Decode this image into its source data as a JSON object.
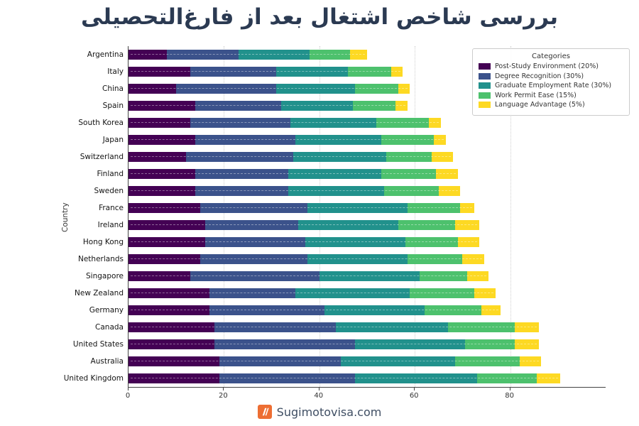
{
  "title": "بررسی شاخص اشتغال بعد از فارغ‌التحصیلی",
  "footer": {
    "text": "Sugimotovisa.com",
    "logo_color": "#ed6e33"
  },
  "axis_color": "#444444",
  "grid_color": "#cfcfcf",
  "chart_data": {
    "type": "bar",
    "orientation": "horizontal",
    "stacked": true,
    "title": "بررسی شاخص اشتغال بعد از فارغ‌التحصیلی",
    "xlabel": "",
    "ylabel": "Country",
    "xlim": [
      0,
      100
    ],
    "xticks": [
      0,
      20,
      40,
      60,
      80
    ],
    "grid": "vertical-dotted",
    "legend": {
      "title": "Categories",
      "position": "upper-right"
    },
    "categories": [
      "Argentina",
      "Italy",
      "China",
      "Spain",
      "South Korea",
      "Japan",
      "Switzerland",
      "Finland",
      "Sweden",
      "France",
      "Ireland",
      "Hong Kong",
      "Netherlands",
      "Singapore",
      "New Zealand",
      "Germany",
      "Canada",
      "United States",
      "Australia",
      "United Kingdom"
    ],
    "series": [
      {
        "name": "Post-Study Environment (20%)",
        "color": "#440154",
        "values": [
          8,
          13,
          10,
          14,
          13,
          14,
          12,
          14,
          14,
          15,
          16,
          16,
          15,
          13,
          17,
          17,
          18,
          18,
          19,
          19
        ]
      },
      {
        "name": "Degree Recognition (30%)",
        "color": "#3b528b",
        "values": [
          15,
          18,
          21,
          18,
          21,
          21,
          22.5,
          19.5,
          19.5,
          22.5,
          19.5,
          21,
          22.5,
          27,
          18,
          24,
          25.5,
          29.5,
          25.5,
          28.5
        ]
      },
      {
        "name": "Graduate Employment Rate (30%)",
        "color": "#21918c",
        "values": [
          15,
          15,
          16.5,
          15,
          18,
          18,
          19.5,
          19.5,
          20,
          21,
          21,
          21,
          21,
          21,
          24,
          21,
          23.5,
          23,
          24,
          25.5
        ]
      },
      {
        "name": "Work Permit Ease (15%)",
        "color": "#4dc16d",
        "values": [
          8.5,
          9,
          9,
          9,
          11,
          11,
          9.5,
          11.5,
          11.5,
          11,
          12,
          11,
          11.5,
          10,
          13.5,
          12,
          14,
          10.5,
          13.5,
          12.5
        ]
      },
      {
        "name": "Language Advantage (5%)",
        "color": "#fdd923",
        "values": [
          3.5,
          2.5,
          2.5,
          2.5,
          2.5,
          2.5,
          4.5,
          4.5,
          4.5,
          3,
          5,
          4.5,
          4.5,
          4.5,
          4.5,
          4,
          5,
          5,
          4.5,
          5
        ]
      }
    ],
    "totals": [
      50,
      57.5,
      59,
      58.5,
      65.5,
      66.5,
      68,
      69,
      69.5,
      72.5,
      73.5,
      73.5,
      74.5,
      75.5,
      77,
      78,
      86,
      86,
      86.5,
      90.5
    ]
  }
}
